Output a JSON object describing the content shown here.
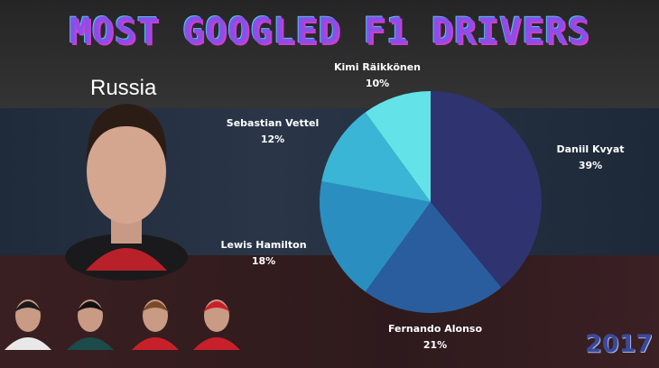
{
  "title": "MOST GOOGLED F1 DRIVERS",
  "country": "Russia",
  "year": "2017",
  "chart_data": {
    "type": "pie",
    "title": "",
    "start": "top",
    "direction": "clockwise",
    "slices": [
      {
        "label": "Daniil Kvyat",
        "value": 39,
        "display": "39%",
        "color": "#2f3370"
      },
      {
        "label": "Fernando Alonso",
        "value": 21,
        "display": "21%",
        "color": "#2a5d9e"
      },
      {
        "label": "Lewis Hamilton",
        "value": 18,
        "display": "18%",
        "color": "#2a8fc0"
      },
      {
        "label": "Sebastian Vettel",
        "value": 12,
        "display": "12%",
        "color": "#3ab5d6"
      },
      {
        "label": "Kimi Räikkönen",
        "value": 10,
        "display": "10%",
        "color": "#63e3e8"
      }
    ]
  },
  "colors": {
    "title": "#8a4fe8",
    "year": "#3a4a9a"
  }
}
